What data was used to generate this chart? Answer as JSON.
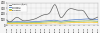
{
  "background_color": "#f5f5f5",
  "legend_entries": [
    "Crude oil ($/m³)",
    "Conifer A",
    "Conifer B",
    "Hardwood"
  ],
  "crude_color": "#555555",
  "line1_color": "#4472c4",
  "line2_color": "#70ad47",
  "line3_color": "#ffc000",
  "years": [
    1998,
    1999,
    2000,
    2001,
    2002,
    2003,
    2004,
    2005,
    2006,
    2007,
    2008,
    2009,
    2010,
    2011,
    2012,
    2013,
    2014,
    2015,
    2016,
    2017
  ],
  "crude_oil": [
    90,
    80,
    140,
    90,
    80,
    95,
    120,
    165,
    190,
    240,
    360,
    150,
    205,
    290,
    280,
    265,
    245,
    120,
    110,
    145
  ],
  "conifer_a": [
    62,
    60,
    63,
    58,
    57,
    60,
    65,
    70,
    75,
    85,
    88,
    72,
    82,
    92,
    97,
    102,
    107,
    112,
    105,
    100
  ],
  "conifer_b": [
    45,
    43,
    46,
    42,
    41,
    44,
    48,
    52,
    55,
    62,
    65,
    53,
    60,
    67,
    70,
    73,
    76,
    78,
    72,
    70
  ],
  "hardwood": [
    30,
    29,
    31,
    28,
    27,
    29,
    32,
    34,
    36,
    40,
    43,
    36,
    39,
    44,
    46,
    49,
    52,
    55,
    52,
    50
  ],
  "ylim": [
    0,
    400
  ],
  "yticks": [
    0,
    100,
    200,
    300,
    400
  ],
  "xlabel_years": [
    "1998",
    "1999",
    "2000",
    "2001",
    "2002",
    "2003",
    "2004",
    "2005",
    "2006",
    "2007",
    "2008",
    "2009",
    "2010",
    "2011",
    "2012",
    "2013",
    "2014",
    "2015",
    "2016",
    "2017"
  ],
  "grid_color": "#cccccc"
}
